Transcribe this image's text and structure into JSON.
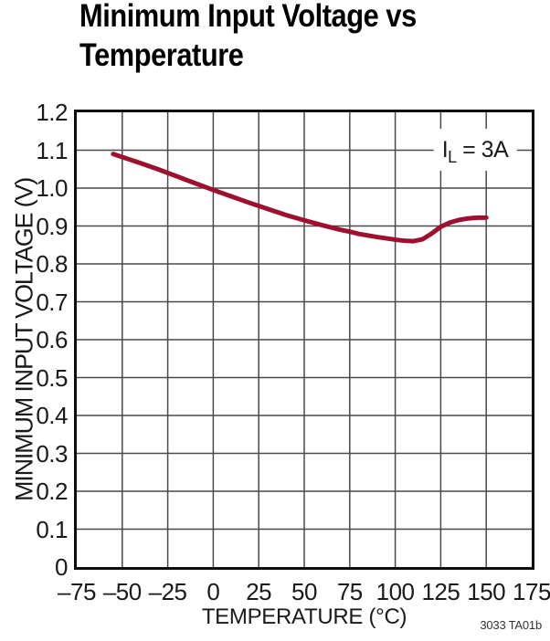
{
  "title": {
    "line1": "Minimum Input Voltage vs",
    "line2": "Temperature"
  },
  "footnote": "3033 TA01b",
  "annotation": {
    "label": "IL = 3A",
    "main": "I",
    "sub": "L",
    "rest": " = 3A"
  },
  "colors": {
    "curve": "#9e1030",
    "grid": "#4a4a4a",
    "axis_border": "#0d0d0d",
    "text": "#1a1a1a",
    "footnote": "#333333",
    "background": "#ffffff"
  },
  "chart_data": {
    "type": "line",
    "title": "Minimum Input Voltage vs Temperature",
    "xlabel": "TEMPERATURE (°C)",
    "ylabel": "MINIMUM INPUT VOLTAGE (V)",
    "xlim": [
      -75,
      175
    ],
    "ylim": [
      0,
      1.2
    ],
    "x_ticks": [
      -75,
      -50,
      -25,
      0,
      25,
      50,
      75,
      100,
      125,
      150,
      175
    ],
    "x_tick_labels": [
      "–75",
      "–50",
      "–25",
      "0",
      "25",
      "50",
      "75",
      "100",
      "125",
      "150",
      "175"
    ],
    "y_ticks": [
      0,
      0.1,
      0.2,
      0.3,
      0.4,
      0.5,
      0.6,
      0.7,
      0.8,
      0.9,
      1.0,
      1.1,
      1.2
    ],
    "y_tick_labels": [
      "0",
      "0.1",
      "0.2",
      "0.3",
      "0.4",
      "0.5",
      "0.6",
      "0.7",
      "0.8",
      "0.9",
      "1.0",
      "1.1",
      "1.2"
    ],
    "grid": true,
    "legend_position": "top-right-inside",
    "series": [
      {
        "name": "IL = 3A",
        "x": [
          -55,
          -50,
          -40,
          -30,
          -25,
          -20,
          -10,
          0,
          10,
          20,
          25,
          30,
          40,
          50,
          60,
          70,
          75,
          80,
          90,
          100,
          105,
          110,
          115,
          120,
          125,
          130,
          135,
          140,
          145,
          150
        ],
        "y": [
          1.09,
          1.082,
          1.066,
          1.049,
          1.04,
          1.031,
          1.013,
          0.995,
          0.978,
          0.961,
          0.953,
          0.945,
          0.929,
          0.915,
          0.902,
          0.89,
          0.885,
          0.879,
          0.871,
          0.864,
          0.861,
          0.86,
          0.865,
          0.88,
          0.898,
          0.909,
          0.916,
          0.92,
          0.922,
          0.922
        ]
      }
    ]
  }
}
